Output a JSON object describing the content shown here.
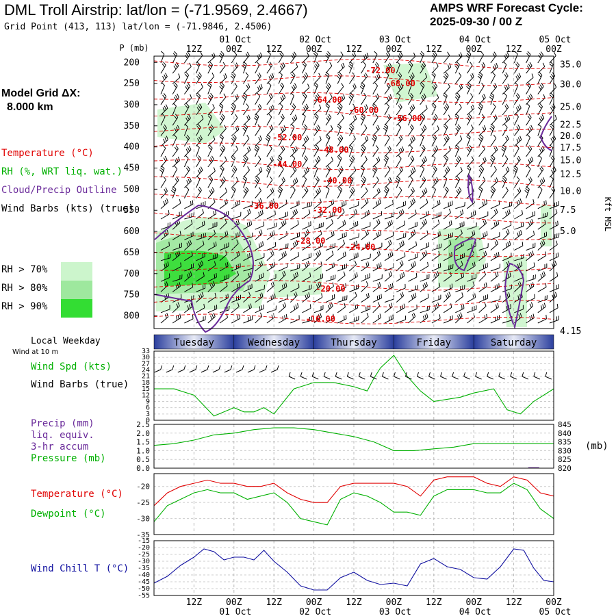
{
  "header": {
    "title": "DML Troll Airstrip:  lat/lon = (-71.9569, 2.4667)",
    "cycle_line1": "AMPS WRF Forecast Cycle:",
    "cycle_line2": "2025-09-30 / 00  Z",
    "grid_point": "Grid Point (413, 113) lat/lon = (-71.9846, 2.4506)"
  },
  "left_panel": {
    "model_grid_label": "Model Grid ΔX:",
    "model_grid_value": "8.000 km",
    "legend_temperature": "Temperature (°C)",
    "legend_rh": "RH (%, WRT liq. wat.)",
    "legend_cloud": "Cloud/Precip Outline",
    "legend_wind": "Wind Barbs (kts) (true)",
    "rh70": "RH > 70%",
    "rh80": "RH > 80%",
    "rh90": "RH > 90%",
    "local_weekday": "Local Weekday",
    "wind_10m": "Wind at 10 m",
    "wind_spd": "Wind Spd (kts)",
    "wind_barbs": "Wind Barbs (true)",
    "precip1": "Precip (mm)",
    "precip2": "liq. equiv.",
    "precip3": "3-hr accum",
    "pressure": "Pressure (mb)",
    "temperature": "Temperature (°C)",
    "dewpoint": "Dewpoint (°C)",
    "wind_chill": "Wind Chill T (°C)"
  },
  "colors": {
    "red": "#e00000",
    "green": "#00b000",
    "purple": "#6a2a9a",
    "blue": "#1010a0",
    "rh70": "#ccf5cc",
    "rh80": "#9ee89e",
    "rh90": "#33dd33"
  },
  "chart_data": {
    "type": "line",
    "time_axis": {
      "top_ticks": [
        "12Z",
        "00Z",
        "12Z",
        "00Z",
        "12Z",
        "00Z",
        "12Z",
        "00Z",
        "12Z",
        "00Z"
      ],
      "date_labels": [
        "01 Oct",
        "02 Oct",
        "03 Oct",
        "04 Oct",
        "05 Oct"
      ],
      "bottom_ticks": [
        "12Z",
        "00Z",
        "12Z",
        "00Z",
        "12Z",
        "00Z",
        "12Z",
        "00Z",
        "12Z",
        "00Z"
      ],
      "weekdays": [
        "Tuesday",
        "Wednesday",
        "Thursday",
        "Friday",
        "Saturday"
      ],
      "hours_range": [
        0,
        120
      ]
    },
    "cross_section": {
      "title": "P (mb)",
      "p_ticks": [
        "200",
        "250",
        "300",
        "350",
        "400",
        "450",
        "500",
        "550",
        "600",
        "650",
        "700",
        "750",
        "800"
      ],
      "kft_ticks": [
        "35.0",
        "30.0",
        "25.0",
        "22.5",
        "20.0",
        "17.5",
        "15.0",
        "12.5",
        "10.0",
        "7.5",
        "5.0",
        "4.15"
      ],
      "kft_label": "Kft MSL",
      "p_range": [
        185,
        830
      ],
      "temperature_labels": [
        "-72.00",
        "-68.00",
        "-64.00",
        "-60.00",
        "-56.00",
        "-52.00",
        "-48.00",
        "-44.00",
        "-40.00",
        "-36.00",
        "-32.00",
        "-28.00",
        "-24.00",
        "-20.00",
        "-16.00"
      ]
    },
    "wind_speed": {
      "y_ticks": [
        "33",
        "30",
        "27",
        "24",
        "21",
        "18",
        "15",
        "12",
        "9",
        "6",
        "3",
        "0"
      ],
      "ylim": [
        0,
        33
      ],
      "x": [
        0,
        6,
        12,
        15,
        18,
        21,
        24,
        27,
        30,
        33,
        36,
        42,
        48,
        54,
        60,
        64,
        66,
        68,
        72,
        76,
        80,
        84,
        88,
        92,
        96,
        102,
        106,
        110,
        114,
        120
      ],
      "values": [
        15,
        15,
        12,
        7,
        2,
        4,
        6,
        4,
        4,
        6,
        3,
        15,
        18,
        18,
        16,
        14,
        20,
        25,
        31,
        21,
        14,
        9,
        10,
        11,
        13,
        15,
        5,
        3,
        9,
        15
      ]
    },
    "precip_pressure": {
      "precip_ticks": [
        "2.5",
        "2.0",
        "1.5",
        "1.0",
        "0.5",
        "0.0"
      ],
      "pressure_ticks": [
        "845",
        "840",
        "835",
        "830",
        "825",
        "820"
      ],
      "pressure_unit": "(mb)",
      "precip_ylim": [
        0,
        2.5
      ],
      "pressure_ylim": [
        820,
        845
      ],
      "x": [
        0,
        6,
        12,
        18,
        24,
        30,
        36,
        42,
        48,
        54,
        60,
        66,
        72,
        78,
        84,
        90,
        96,
        102,
        108,
        114,
        120
      ],
      "pressure": [
        833,
        834,
        836,
        839,
        840,
        842,
        843,
        843,
        842,
        840,
        838,
        835,
        830,
        830,
        831,
        832,
        834,
        834,
        834,
        834,
        834
      ],
      "precip_x": [
        114
      ],
      "precip": [
        0.05
      ]
    },
    "temp_dew": {
      "y_ticks": [
        "-20",
        "-25",
        "-30",
        "-35"
      ],
      "ylim": [
        -35,
        -16
      ],
      "x": [
        0,
        4,
        8,
        12,
        16,
        20,
        24,
        28,
        32,
        36,
        40,
        44,
        48,
        52,
        56,
        60,
        64,
        68,
        72,
        76,
        80,
        84,
        88,
        92,
        96,
        100,
        104,
        108,
        112,
        116,
        120
      ],
      "temperature": [
        -26,
        -22,
        -20,
        -19,
        -18,
        -19,
        -19,
        -20,
        -20,
        -19,
        -22,
        -24,
        -25,
        -25,
        -20,
        -19,
        -19,
        -19,
        -19,
        -20,
        -23,
        -18,
        -17,
        -17,
        -17,
        -19,
        -20,
        -17,
        -18,
        -22,
        -23
      ],
      "dewpoint": [
        -31,
        -26,
        -24,
        -22,
        -21,
        -22,
        -22,
        -24,
        -23,
        -22,
        -25,
        -30,
        -31,
        -32,
        -24,
        -22,
        -23,
        -25,
        -28,
        -28,
        -29,
        -23,
        -21,
        -21,
        -21,
        -22,
        -22,
        -19,
        -21,
        -27,
        -30
      ],
      "series": [
        {
          "name": "Temperature",
          "key": "temperature"
        },
        {
          "name": "Dewpoint",
          "key": "dewpoint"
        }
      ]
    },
    "wind_chill": {
      "y_ticks": [
        "-15",
        "-20",
        "-25",
        "-30",
        "-35",
        "-40",
        "-45",
        "-50",
        "-55"
      ],
      "ylim": [
        -55,
        -15
      ],
      "x": [
        0,
        4,
        8,
        12,
        15,
        18,
        21,
        24,
        27,
        30,
        33,
        36,
        40,
        44,
        48,
        52,
        56,
        60,
        64,
        68,
        72,
        76,
        80,
        84,
        88,
        92,
        96,
        100,
        104,
        108,
        111,
        114,
        117,
        120
      ],
      "values": [
        -46,
        -41,
        -33,
        -27,
        -21,
        -23,
        -29,
        -27,
        -27,
        -29,
        -22,
        -30,
        -38,
        -48,
        -51,
        -51,
        -42,
        -38,
        -44,
        -47,
        -46,
        -48,
        -32,
        -28,
        -34,
        -36,
        -42,
        -43,
        -34,
        -21,
        -22,
        -35,
        -44,
        -45
      ]
    }
  }
}
